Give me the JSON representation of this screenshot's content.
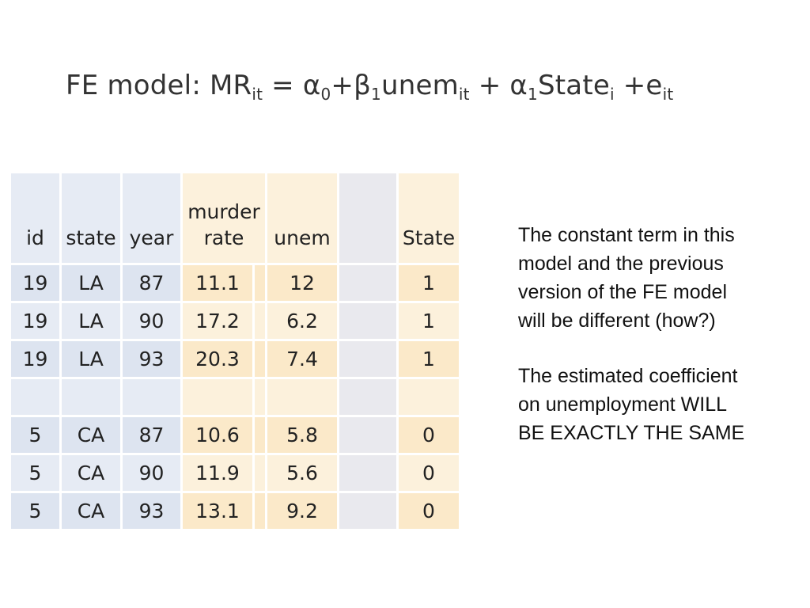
{
  "title": {
    "lead": "FE model: MR",
    "mr_sub": "it",
    "eq": " = α",
    "a0_sub": "0",
    "plus_b": "+β",
    "b1_sub": "1",
    "unem": "unem",
    "unem_sub": "it",
    "plus_a": " + α",
    "a1_sub": "1",
    "state": "State",
    "state_sub": "i",
    "plus_e": " +e",
    "e_sub": "it"
  },
  "table": {
    "headers": {
      "id": "id",
      "state": "state",
      "year": "year",
      "murder_top": "murder",
      "murder_bottom": "rate",
      "unem": "unem",
      "blank": "",
      "State": "State"
    },
    "rows": [
      {
        "id": "19",
        "state": "LA",
        "year": "87",
        "mr": "11.1",
        "unem": "12",
        "State": "1"
      },
      {
        "id": "19",
        "state": "LA",
        "year": "90",
        "mr": "17.2",
        "unem": "6.2",
        "State": "1"
      },
      {
        "id": "19",
        "state": "LA",
        "year": "93",
        "mr": "20.3",
        "unem": "7.4",
        "State": "1"
      },
      {
        "id": "",
        "state": "",
        "year": "",
        "mr": "",
        "unem": "",
        "State": ""
      },
      {
        "id": "5",
        "state": "CA",
        "year": "87",
        "mr": "10.6",
        "unem": "5.8",
        "State": "0"
      },
      {
        "id": "5",
        "state": "CA",
        "year": "90",
        "mr": "11.9",
        "unem": "5.6",
        "State": "0"
      },
      {
        "id": "5",
        "state": "CA",
        "year": "93",
        "mr": "13.1",
        "unem": "9.2",
        "State": "0"
      }
    ]
  },
  "notes": {
    "note1": "The constant term in this model and the previous version of the FE model will be different (how?)",
    "note2": "The estimated coefficient on unemployment WILL BE EXACTLY THE SAME"
  },
  "colors": {
    "blue_cells": "#e6ebf4",
    "yellow_cells": "#fcf1dc",
    "grey_cells": "#e9e9ee"
  }
}
